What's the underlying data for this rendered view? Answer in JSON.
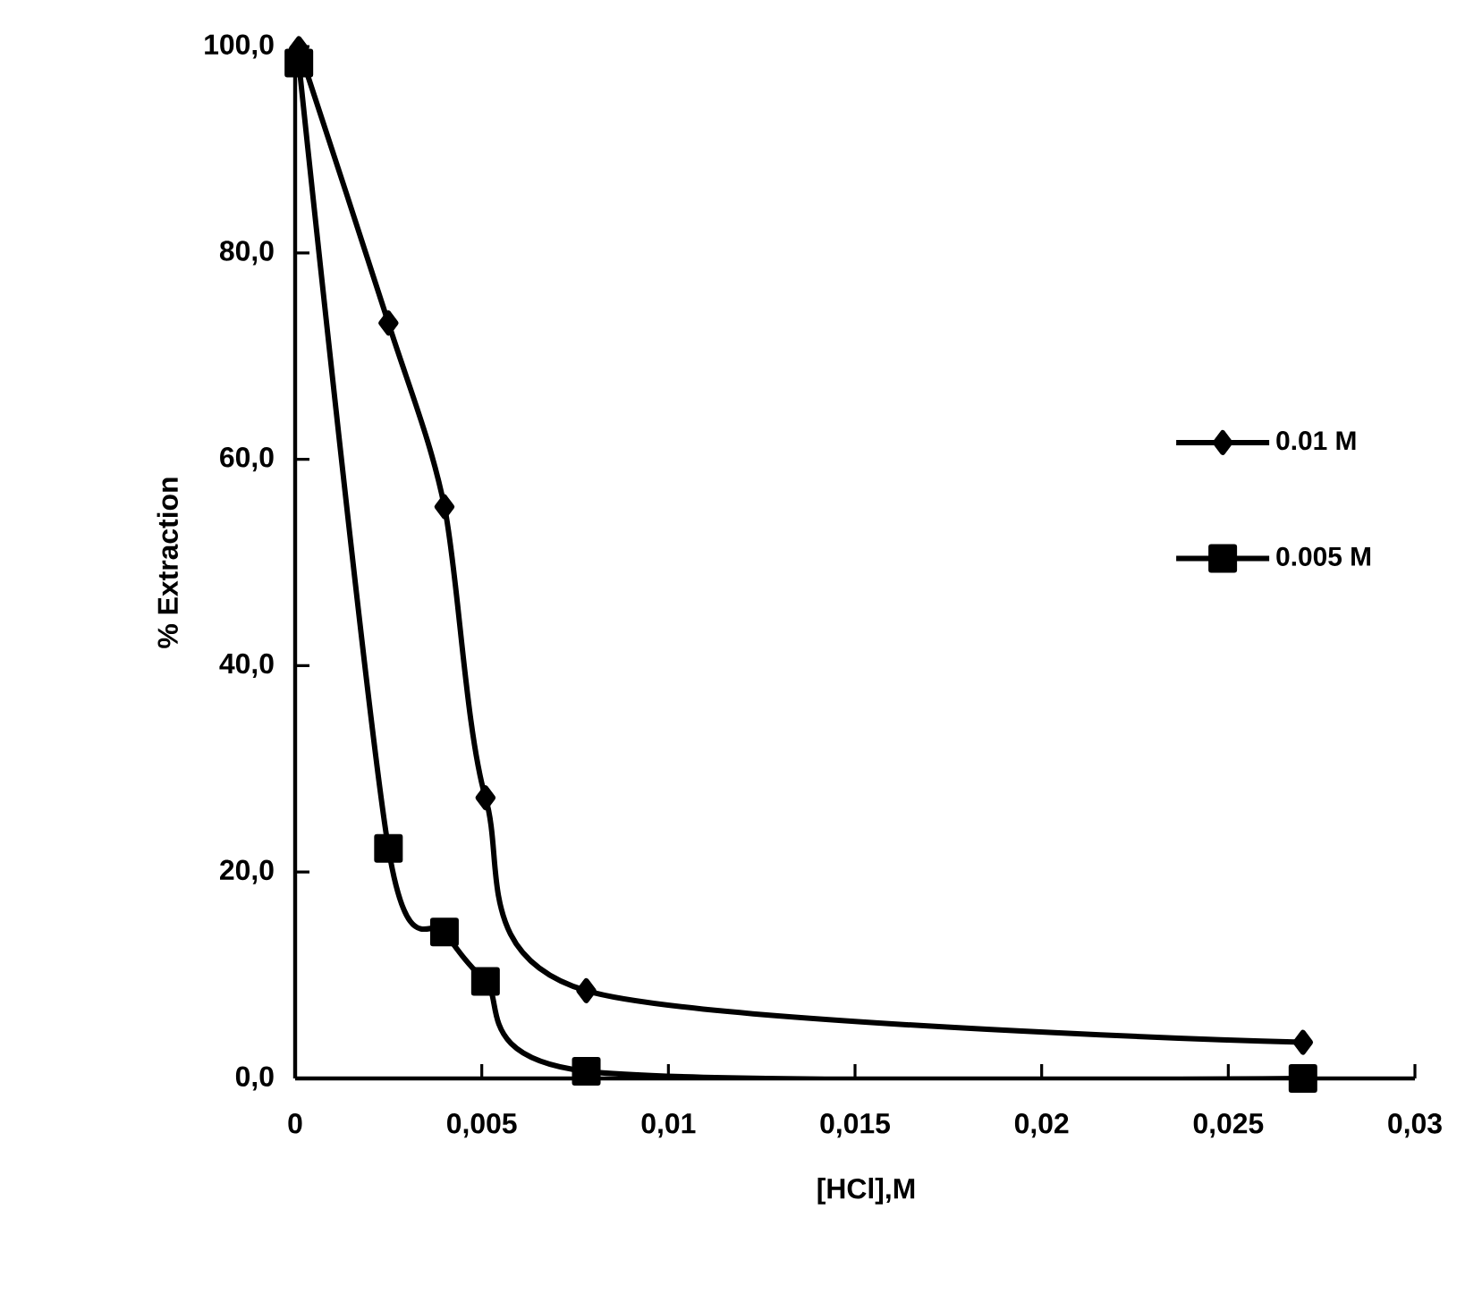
{
  "chart_data": {
    "type": "line",
    "xlabel": "[HCl],M",
    "ylabel": "% Extraction",
    "x": [
      0.0001,
      0.0025,
      0.004,
      0.0051,
      0.0078,
      0.027
    ],
    "series": [
      {
        "name": "0.01 M",
        "color": "#000000",
        "marker": "diamond",
        "values": [
          99.8,
          73.2,
          55.4,
          27.2,
          8.5,
          3.5
        ]
      },
      {
        "name": "0.005 M",
        "color": "#000000",
        "marker": "square",
        "values": [
          98.4,
          22.3,
          14.2,
          9.4,
          0.7,
          0
        ]
      }
    ],
    "xlim": [
      0,
      0.03
    ],
    "ylim": [
      0,
      100
    ],
    "xticks": [
      0,
      {
        "value": 0.005,
        "label": "0,005"
      },
      {
        "value": 0.01,
        "label": "0,01"
      },
      {
        "value": 0.015,
        "label": "0,015"
      },
      {
        "value": 0.02,
        "label": "0,02"
      },
      {
        "value": 0.025,
        "label": "0,025"
      },
      {
        "value": 0.03,
        "label": "0,03"
      }
    ],
    "yticks": [
      {
        "value": 0,
        "label": "0,0"
      },
      {
        "value": 20,
        "label": "20,0"
      },
      {
        "value": 40,
        "label": "40,0"
      },
      {
        "value": 60,
        "label": "60,0"
      },
      {
        "value": 80,
        "label": "80,0"
      },
      {
        "value": 100,
        "label": "100,0"
      }
    ],
    "grid": false,
    "legend": "center right",
    "line_style": "solid"
  }
}
